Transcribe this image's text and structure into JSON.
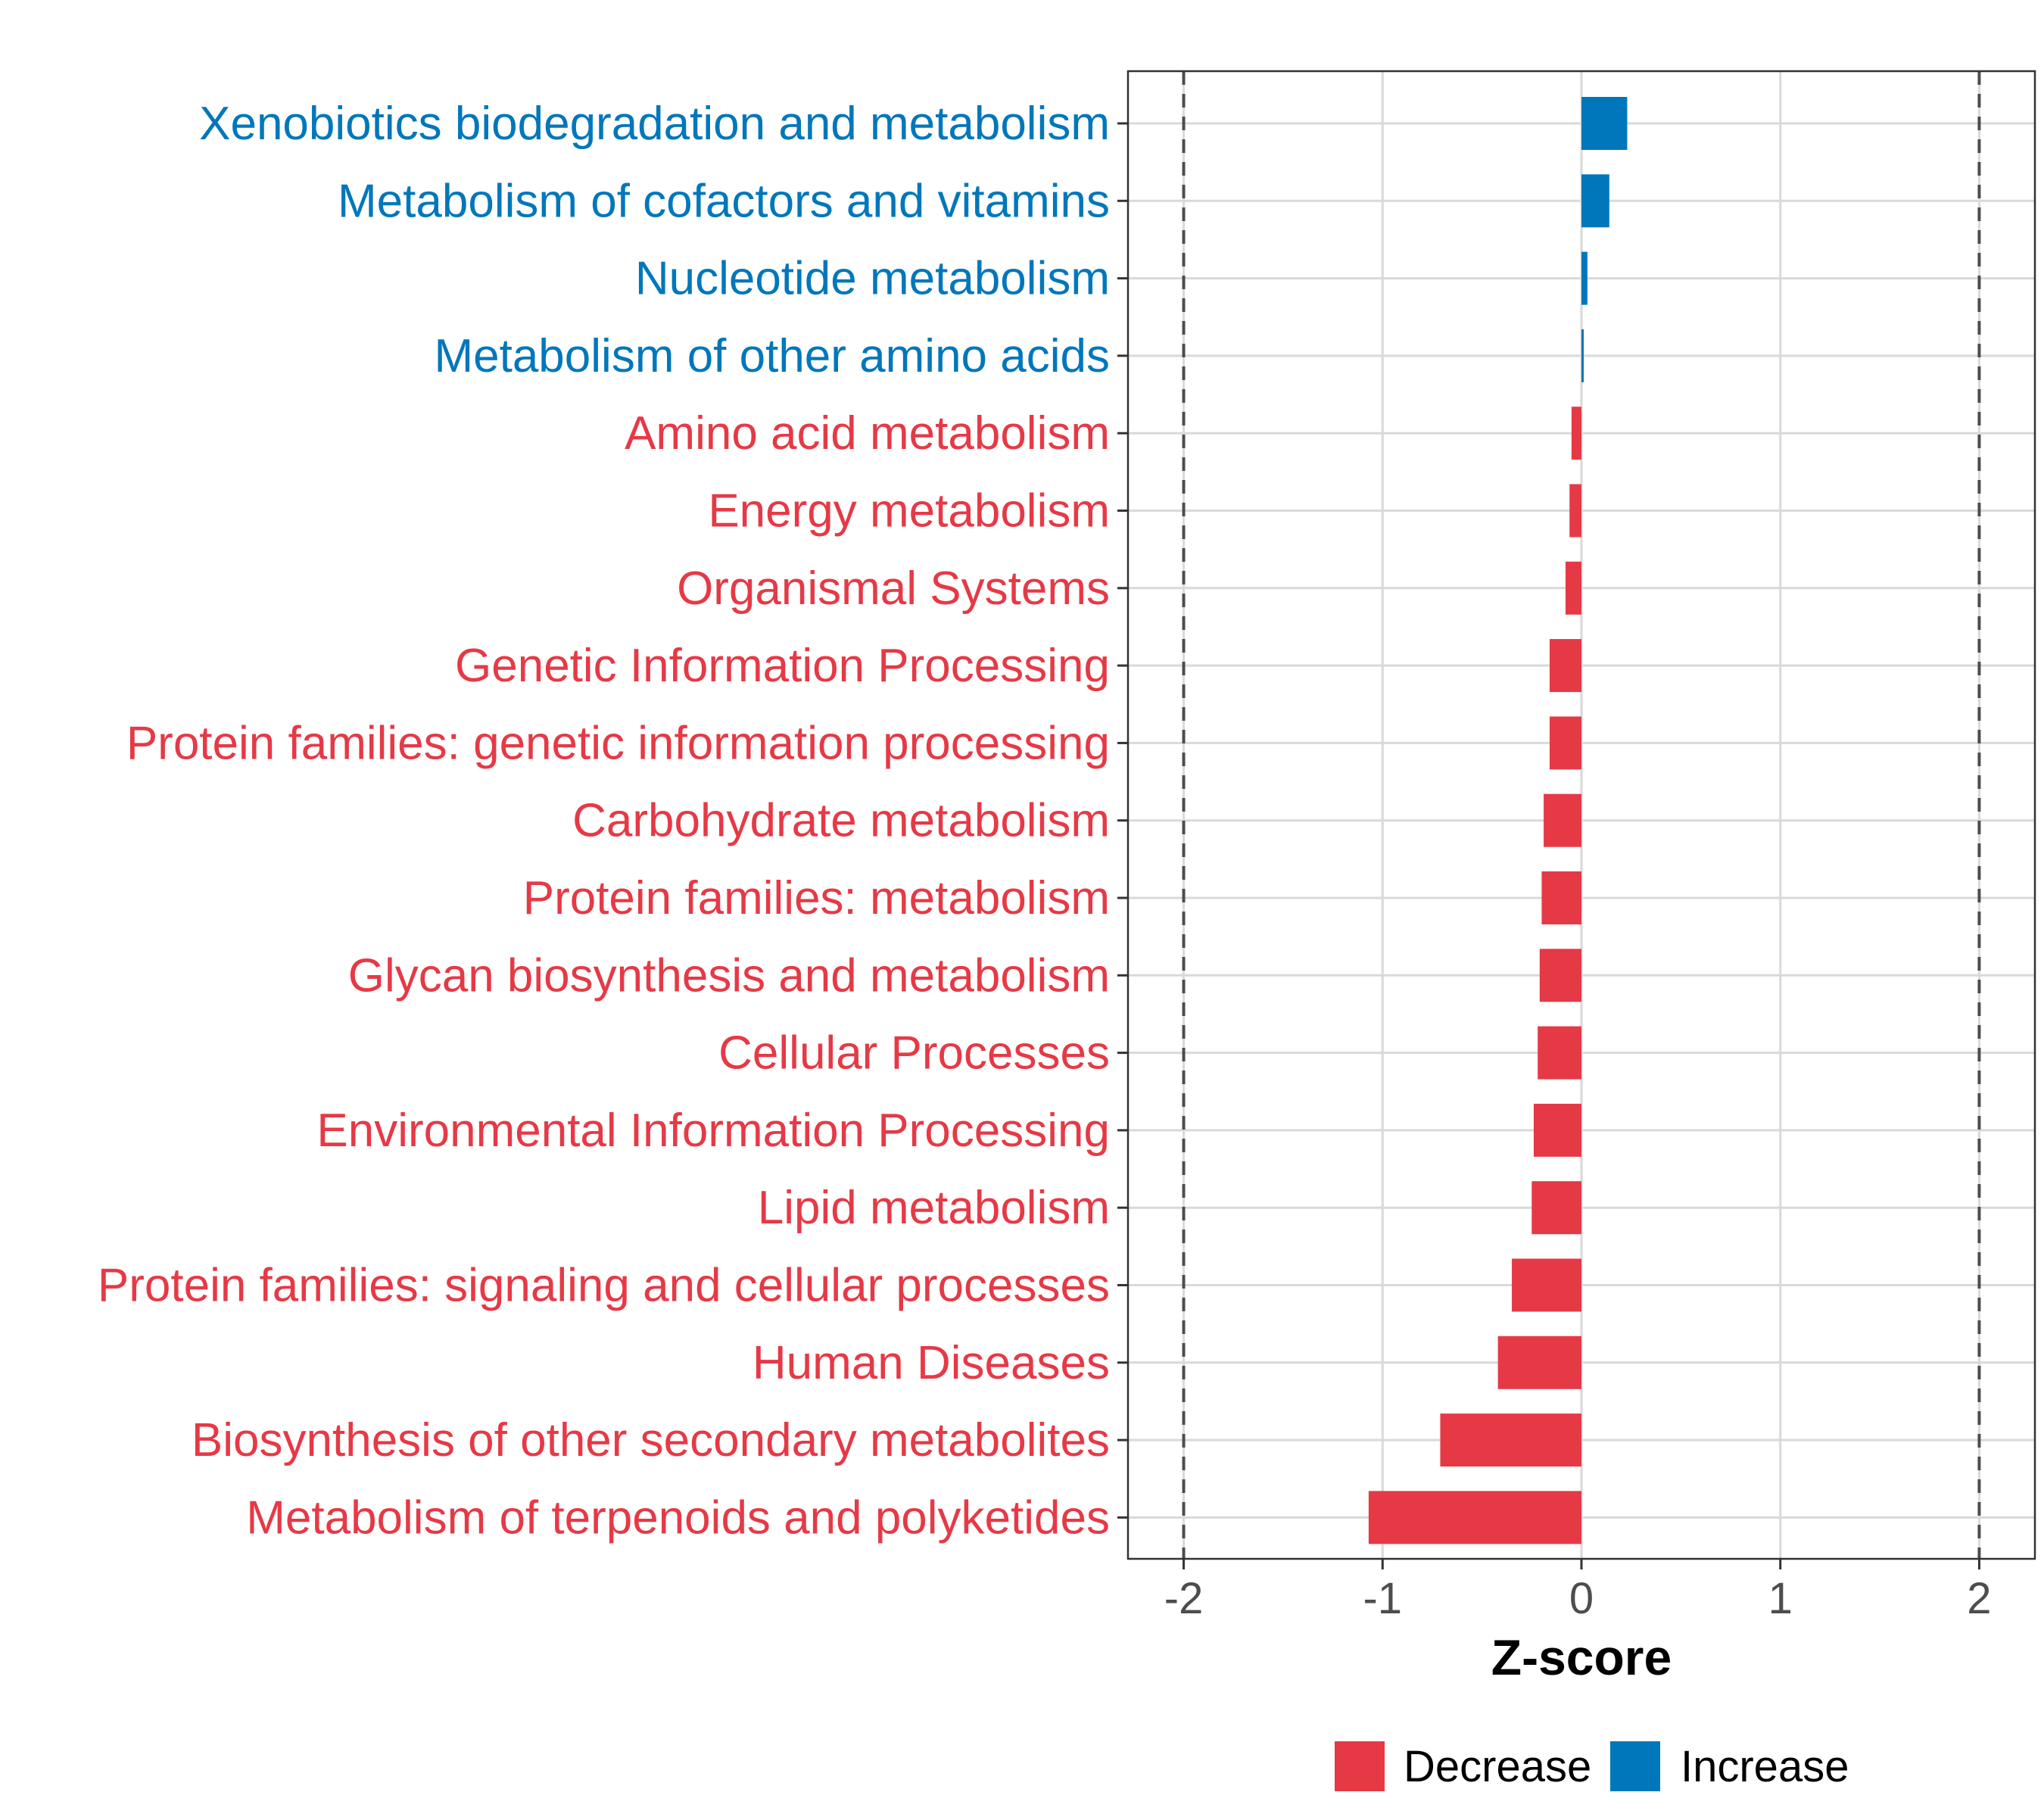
{
  "colors": {
    "decrease": "#e63946",
    "increase": "#0077bb",
    "grid": "#d9d9d9",
    "panel_border": "#333333",
    "reference_line": "#4d4d4d",
    "tick_text": "#4d4d4d"
  },
  "chart_data": {
    "type": "bar",
    "orientation": "horizontal",
    "title": "",
    "xlabel": "Z-score",
    "ylabel": "",
    "xlim": [
      -2.28,
      2.28
    ],
    "x_ticks": [
      -2,
      -1,
      0,
      1,
      2
    ],
    "x_tick_labels": [
      "-2",
      "-1",
      "0",
      "1",
      "2"
    ],
    "reference_lines": [
      -2,
      2
    ],
    "grid": true,
    "legend_position": "bottom",
    "legend": [
      {
        "name": "Decrease",
        "color": "#e63946"
      },
      {
        "name": "Increase",
        "color": "#0077bb"
      }
    ],
    "categories": [
      "Xenobiotics biodegradation and metabolism",
      "Metabolism of cofactors and vitamins",
      "Nucleotide metabolism",
      "Metabolism of other amino acids",
      "Amino acid metabolism",
      "Energy metabolism",
      "Organismal Systems",
      "Genetic Information Processing",
      "Protein families: genetic information processing",
      "Carbohydrate metabolism",
      "Protein families: metabolism",
      "Glycan biosynthesis and metabolism",
      "Cellular Processes",
      "Environmental Information Processing",
      "Lipid metabolism",
      "Protein families: signaling and cellular processes",
      "Human Diseases",
      "Biosynthesis of other secondary metabolites",
      "Metabolism of terpenoids and polyketides"
    ],
    "values": [
      0.23,
      0.14,
      0.03,
      0.01,
      -0.05,
      -0.06,
      -0.08,
      -0.16,
      -0.16,
      -0.19,
      -0.2,
      -0.21,
      -0.22,
      -0.24,
      -0.25,
      -0.35,
      -0.42,
      -0.71,
      -1.07
    ],
    "groups": [
      "Increase",
      "Increase",
      "Increase",
      "Increase",
      "Decrease",
      "Decrease",
      "Decrease",
      "Decrease",
      "Decrease",
      "Decrease",
      "Decrease",
      "Decrease",
      "Decrease",
      "Decrease",
      "Decrease",
      "Decrease",
      "Decrease",
      "Decrease",
      "Decrease"
    ]
  }
}
